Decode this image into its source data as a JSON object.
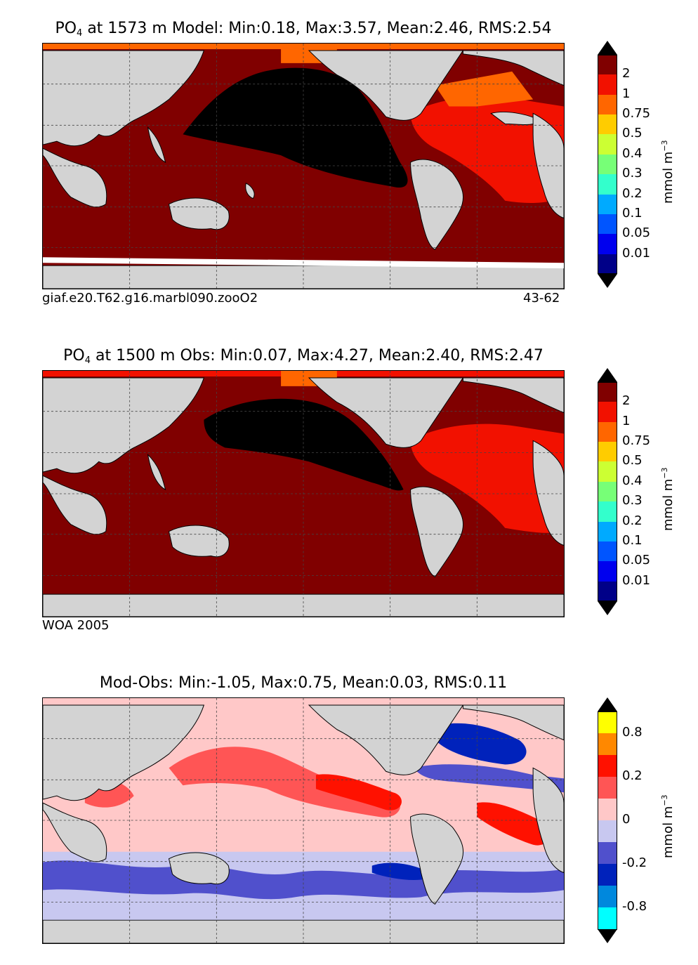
{
  "panels": [
    {
      "title_species": "PO",
      "title_sub": "4",
      "title_rest": " at 1573 m Model: Min:0.18, Max:3.57, Mean:2.46, RMS:2.54",
      "note_left": "giaf.e20.T62.g16.marbl090.zooO2",
      "note_right": "43-62",
      "colorbar": {
        "levels": [
          "2",
          "1",
          "0.75",
          "0.5",
          "0.4",
          "0.3",
          "0.2",
          "0.1",
          "0.05",
          "0.01"
        ],
        "colors": [
          "#800000",
          "#f21100",
          "#ff6600",
          "#ffcc00",
          "#ccff33",
          "#77ff77",
          "#33ffcc",
          "#00aaff",
          "#0055ff",
          "#0000ee",
          "#000088"
        ],
        "top_color": "#000000",
        "bottom_color": "#000000",
        "unit": "mmol m",
        "unit_sup": "−3"
      }
    },
    {
      "title_species": "PO",
      "title_sub": "4",
      "title_rest": " at 1500 m Obs: Min:0.07, Max:4.27, Mean:2.40, RMS:2.47",
      "note_left": "WOA 2005",
      "note_right": "",
      "colorbar": {
        "levels": [
          "2",
          "1",
          "0.75",
          "0.5",
          "0.4",
          "0.3",
          "0.2",
          "0.1",
          "0.05",
          "0.01"
        ],
        "colors": [
          "#800000",
          "#f21100",
          "#ff6600",
          "#ffcc00",
          "#ccff33",
          "#77ff77",
          "#33ffcc",
          "#00aaff",
          "#0055ff",
          "#0000ee",
          "#000088"
        ],
        "top_color": "#000000",
        "bottom_color": "#000000",
        "unit": "mmol m",
        "unit_sup": "−3"
      }
    },
    {
      "title_species": "",
      "title_sub": "",
      "title_rest": "Mod-Obs: Min:-1.05, Max:0.75, Mean:0.03, RMS:0.11",
      "note_left": "",
      "note_right": "",
      "colorbar": {
        "levels": [
          "0.8",
          "0.2",
          "0",
          "-0.2",
          "-0.8"
        ],
        "colors": [
          "#ffff00",
          "#ff8800",
          "#ff1100",
          "#ff5555",
          "#ffc8c8",
          "#c8c8f0",
          "#5050cc",
          "#0022bb",
          "#0088dd",
          "#00ffff"
        ],
        "top_color": "#000000",
        "bottom_color": "#000000",
        "unit": "mmol m",
        "unit_sup": "−3"
      }
    }
  ]
}
